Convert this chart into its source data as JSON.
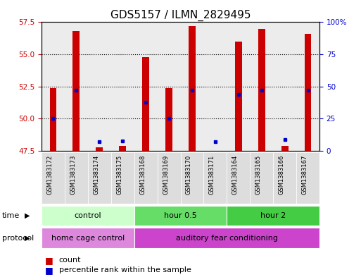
{
  "title": "GDS5157 / ILMN_2829495",
  "samples": [
    "GSM1383172",
    "GSM1383173",
    "GSM1383174",
    "GSM1383175",
    "GSM1383168",
    "GSM1383169",
    "GSM1383170",
    "GSM1383171",
    "GSM1383164",
    "GSM1383165",
    "GSM1383166",
    "GSM1383167"
  ],
  "count_values": [
    52.4,
    56.8,
    47.8,
    47.9,
    54.8,
    52.4,
    57.2,
    47.4,
    56.0,
    57.0,
    47.9,
    56.6
  ],
  "percentile_values": [
    25,
    47,
    7,
    8,
    38,
    25,
    47,
    7,
    44,
    47,
    9,
    47
  ],
  "ylim_left": [
    47.5,
    57.5
  ],
  "ylim_right": [
    0,
    100
  ],
  "yticks_left": [
    47.5,
    50.0,
    52.5,
    55.0,
    57.5
  ],
  "yticks_right": [
    0,
    25,
    50,
    75,
    100
  ],
  "bar_color": "#cc0000",
  "dot_color": "#0000cc",
  "bar_bottom": 47.5,
  "time_groups": [
    {
      "label": "control",
      "start": 0,
      "end": 4,
      "color": "#ccffcc"
    },
    {
      "label": "hour 0.5",
      "start": 4,
      "end": 8,
      "color": "#66dd66"
    },
    {
      "label": "hour 2",
      "start": 8,
      "end": 12,
      "color": "#44cc44"
    }
  ],
  "protocol_groups": [
    {
      "label": "home cage control",
      "start": 0,
      "end": 4,
      "color": "#dd88dd"
    },
    {
      "label": "auditory fear conditioning",
      "start": 4,
      "end": 12,
      "color": "#cc44cc"
    }
  ],
  "xlabel_time": "time",
  "xlabel_protocol": "protocol",
  "legend_count": "count",
  "legend_pct": "percentile rank within the sample",
  "grid_dotted_yticks": [
    50.0,
    52.5,
    55.0
  ],
  "bg_color": "#ffffff",
  "axis_label_color_left": "#cc0000",
  "axis_label_color_right": "#0000cc",
  "col_bg_color": "#dddddd",
  "title_fontsize": 11
}
